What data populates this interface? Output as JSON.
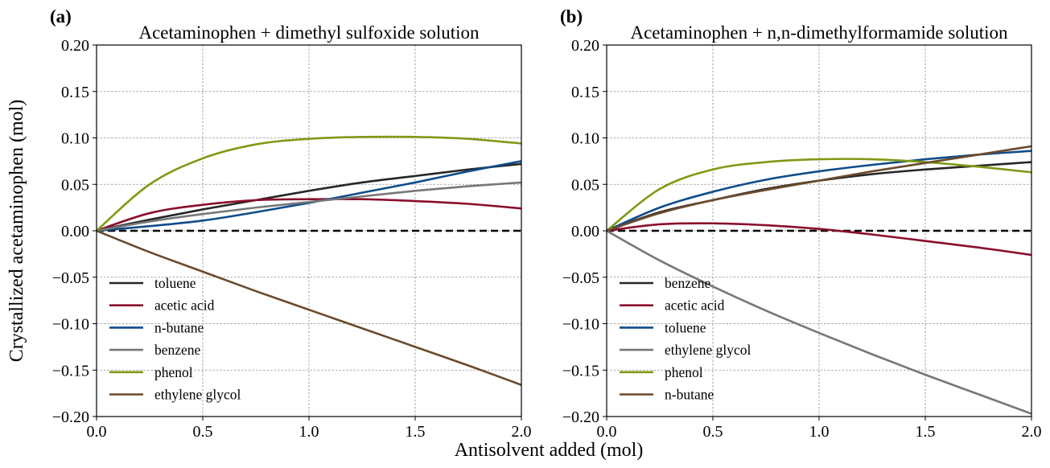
{
  "figure": {
    "ylabel": "Crystallized acetaminophen (mol)",
    "xlabel": "Antisolvent added (mol)"
  },
  "chart_data": [
    {
      "type": "line",
      "panel_label": "(a)",
      "title": "Acetaminophen + dimethyl sulfoxide solution",
      "xlim": [
        0,
        2.0
      ],
      "ylim": [
        -0.2,
        0.2
      ],
      "xticks": [
        "0.0",
        "0.5",
        "1.0",
        "1.5",
        "2.0"
      ],
      "yticks": [
        "0.20",
        "0.15",
        "0.10",
        "0.05",
        "0.00",
        "−0.05",
        "−0.10",
        "−0.15",
        "−0.20"
      ],
      "grid": true,
      "legend_position": "lower-left",
      "x": [
        0,
        0.25,
        0.5,
        0.75,
        1.0,
        1.25,
        1.5,
        1.75,
        2.0
      ],
      "series": [
        {
          "name": "toluene",
          "color": "#262626",
          "values": [
            0,
            0.012,
            0.023,
            0.033,
            0.043,
            0.052,
            0.059,
            0.066,
            0.072
          ]
        },
        {
          "name": "acetic acid",
          "color": "#8b0d2c",
          "values": [
            0,
            0.019,
            0.028,
            0.033,
            0.034,
            0.034,
            0.032,
            0.029,
            0.024
          ]
        },
        {
          "name": "n-butane",
          "color": "#0f4c8a",
          "values": [
            0,
            0.005,
            0.011,
            0.02,
            0.03,
            0.041,
            0.052,
            0.064,
            0.075
          ]
        },
        {
          "name": "benzene",
          "color": "#777777",
          "values": [
            0,
            0.01,
            0.018,
            0.025,
            0.031,
            0.037,
            0.043,
            0.048,
            0.052
          ]
        },
        {
          "name": "phenol",
          "color": "#7f9a14",
          "values": [
            0,
            0.05,
            0.078,
            0.093,
            0.099,
            0.101,
            0.101,
            0.099,
            0.094
          ]
        },
        {
          "name": "ethylene glycol",
          "color": "#6b4a2c",
          "values": [
            0,
            -0.023,
            -0.044,
            -0.065,
            -0.085,
            -0.105,
            -0.125,
            -0.145,
            -0.166
          ]
        }
      ],
      "reference_line": {
        "y": 0.0,
        "color": "#000000",
        "style": "dashed"
      }
    },
    {
      "type": "line",
      "panel_label": "(b)",
      "title": "Acetaminophen + n,n-dimethylformamide solution",
      "xlim": [
        0,
        2.0
      ],
      "ylim": [
        -0.2,
        0.2
      ],
      "xticks": [
        "0.0",
        "0.5",
        "1.0",
        "1.5",
        "2.0"
      ],
      "yticks": [
        "0.20",
        "0.15",
        "0.10",
        "0.05",
        "0.00",
        "−0.05",
        "−0.10",
        "−0.15",
        "−0.20"
      ],
      "grid": true,
      "legend_position": "lower-left",
      "x": [
        0,
        0.25,
        0.5,
        0.75,
        1.0,
        1.25,
        1.5,
        1.75,
        2.0
      ],
      "series": [
        {
          "name": "benzene",
          "color": "#262626",
          "values": [
            0,
            0.02,
            0.033,
            0.045,
            0.054,
            0.061,
            0.066,
            0.07,
            0.074
          ]
        },
        {
          "name": "acetic acid",
          "color": "#8b0d2c",
          "values": [
            0,
            0.007,
            0.008,
            0.006,
            0.002,
            -0.004,
            -0.011,
            -0.018,
            -0.026
          ]
        },
        {
          "name": "toluene",
          "color": "#0f4c8a",
          "values": [
            0,
            0.025,
            0.042,
            0.055,
            0.064,
            0.071,
            0.077,
            0.082,
            0.086
          ]
        },
        {
          "name": "ethylene glycol",
          "color": "#777777",
          "values": [
            0,
            -0.032,
            -0.06,
            -0.086,
            -0.11,
            -0.133,
            -0.155,
            -0.176,
            -0.197
          ]
        },
        {
          "name": "phenol",
          "color": "#7f9a14",
          "values": [
            0,
            0.045,
            0.066,
            0.074,
            0.077,
            0.077,
            0.074,
            0.069,
            0.063
          ]
        },
        {
          "name": "n-butane",
          "color": "#6b4a2c",
          "values": [
            0,
            0.019,
            0.033,
            0.044,
            0.054,
            0.064,
            0.073,
            0.082,
            0.091
          ]
        }
      ],
      "reference_line": {
        "y": 0.0,
        "color": "#000000",
        "style": "dashed"
      }
    }
  ]
}
